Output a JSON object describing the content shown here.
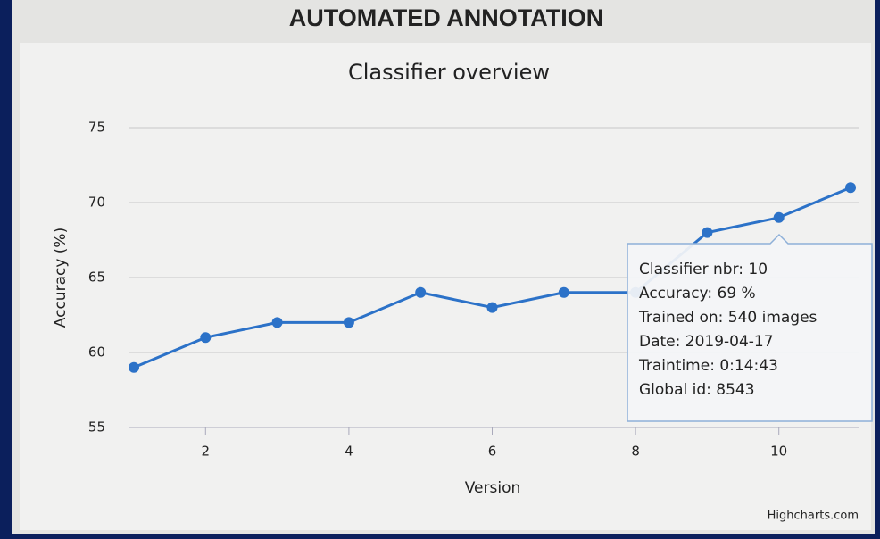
{
  "header": "AUTOMATED ANNOTATION",
  "chart_data": {
    "type": "line",
    "title": "Classifier overview",
    "x_label": "Version",
    "y_label": "Accuracy (%)",
    "x": [
      1,
      2,
      3,
      4,
      5,
      6,
      7,
      8,
      9,
      10,
      11
    ],
    "series": [
      {
        "name": "Accuracy",
        "color": "#2c72c8",
        "values": [
          59,
          61,
          62,
          62,
          64,
          63,
          64,
          64,
          68,
          69,
          71
        ]
      }
    ],
    "xlim": [
      1,
      11
    ],
    "xticks": [
      2,
      4,
      6,
      8,
      10
    ],
    "ylim": [
      55,
      75
    ],
    "yticks": [
      55,
      60,
      65,
      70,
      75
    ],
    "grid": true,
    "tooltip": [
      "Classifier nbr: 10",
      "Accuracy: 69 %",
      "Trained on: 540 images",
      "Date: 2019-04-17",
      "Traintime: 0:14:43",
      "Global id: 8543"
    ],
    "credit": "Highcharts.com"
  }
}
